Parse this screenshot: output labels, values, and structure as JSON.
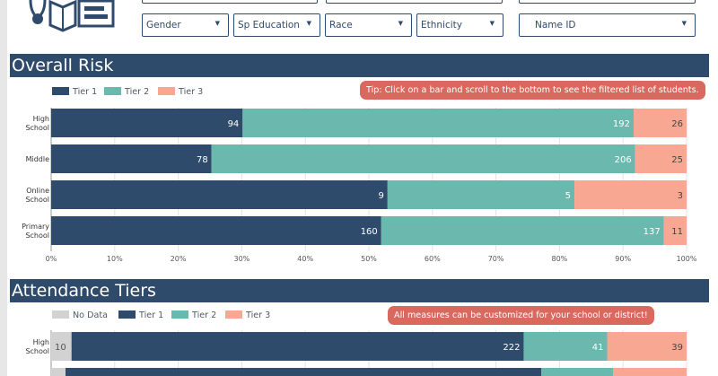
{
  "filters": {
    "gender": "Gender",
    "sp_education": "Sp Education",
    "race": "Race",
    "ethnicity": "Ethnicity",
    "name_id": "Name ID"
  },
  "colors": {
    "no_data": "#d2d2d2",
    "tier1": "#2f4b6c",
    "tier2": "#6ab8ae",
    "tier3": "#f8a892",
    "accent": "#d9695e"
  },
  "overall_risk": {
    "title": "Overall Risk",
    "tip": "Tip: Click on a bar and scroll to the bottom to see the filtered list of students."
  },
  "attendance": {
    "title": "Attendance Tiers",
    "tip": "All measures can be customized for your school or district!"
  },
  "chart_data": [
    {
      "type": "bar",
      "orientation": "horizontal",
      "stacking": "percent",
      "title": "Overall Risk",
      "categories": [
        [
          "High",
          "School"
        ],
        [
          "Middle"
        ],
        [
          "Online",
          "School"
        ],
        [
          "Primary",
          "School"
        ]
      ],
      "series": [
        {
          "name": "Tier 1",
          "values": [
            94,
            78,
            9,
            160
          ]
        },
        {
          "name": "Tier 2",
          "values": [
            192,
            206,
            5,
            137
          ]
        },
        {
          "name": "Tier 3",
          "values": [
            26,
            25,
            3,
            11
          ]
        }
      ],
      "xticks": [
        "0%",
        "10%",
        "20%",
        "30%",
        "40%",
        "50%",
        "60%",
        "70%",
        "80%",
        "90%",
        "100%"
      ],
      "xlim": [
        0,
        100
      ],
      "legend": "top-left"
    },
    {
      "type": "bar",
      "orientation": "horizontal",
      "stacking": "percent",
      "title": "Attendance Tiers",
      "categories": [
        [
          "High",
          "School"
        ]
      ],
      "series": [
        {
          "name": "No Data",
          "values": [
            10
          ]
        },
        {
          "name": "Tier 1",
          "values": [
            222
          ]
        },
        {
          "name": "Tier 2",
          "values": [
            41
          ]
        },
        {
          "name": "Tier 3",
          "values": [
            39
          ]
        }
      ],
      "xlim": [
        0,
        100
      ],
      "legend": "top-left"
    }
  ]
}
